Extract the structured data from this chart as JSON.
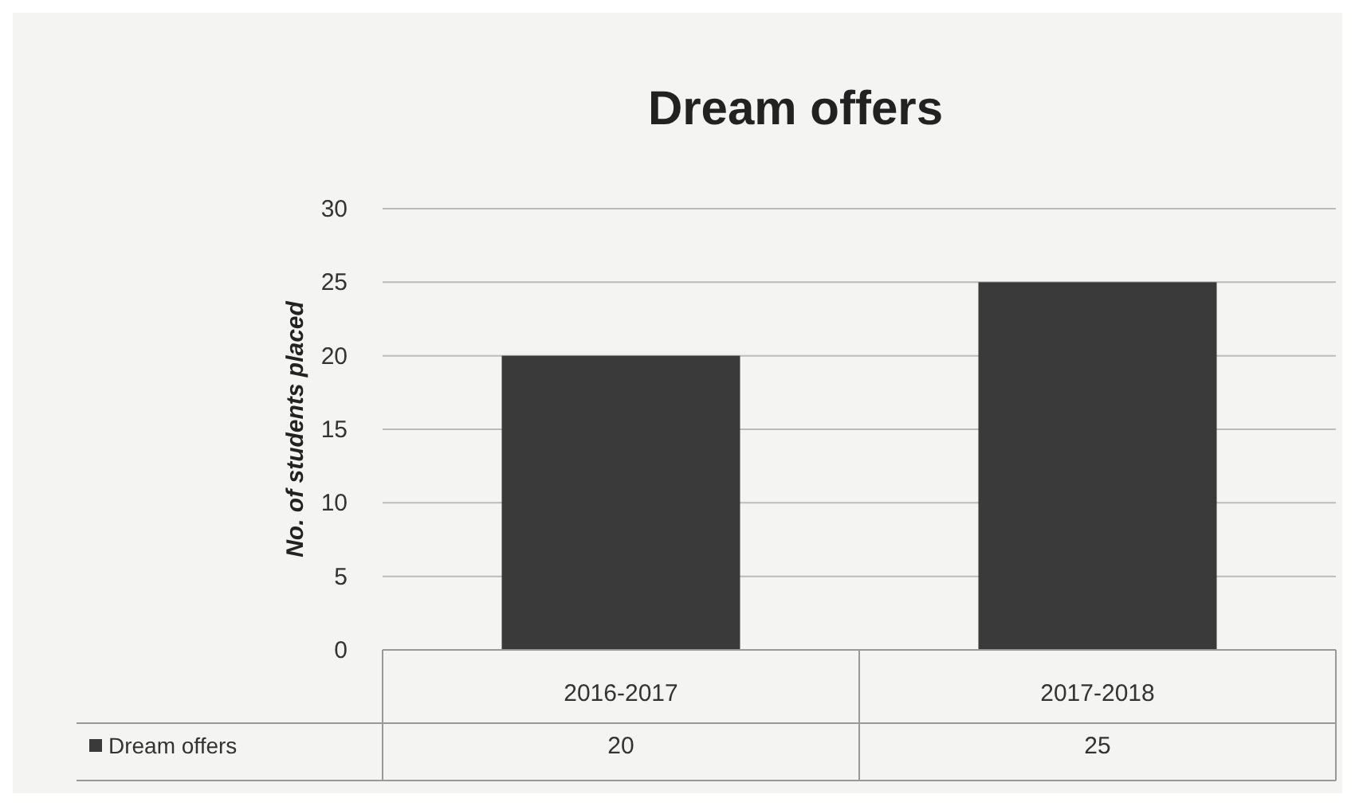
{
  "chart_data": {
    "type": "bar",
    "title": "Dream offers",
    "ylabel": "No. of students placed",
    "categories": [
      "2016-2017",
      "2017-2018"
    ],
    "series": [
      {
        "name": "Dream offers",
        "color": "#3a3a3a",
        "values": [
          20,
          25
        ]
      }
    ],
    "ylim": [
      0,
      30
    ],
    "yticks": [
      0,
      5,
      10,
      15,
      20,
      25,
      30
    ],
    "grid": "y",
    "data_labels": true,
    "legend": "bottom"
  }
}
